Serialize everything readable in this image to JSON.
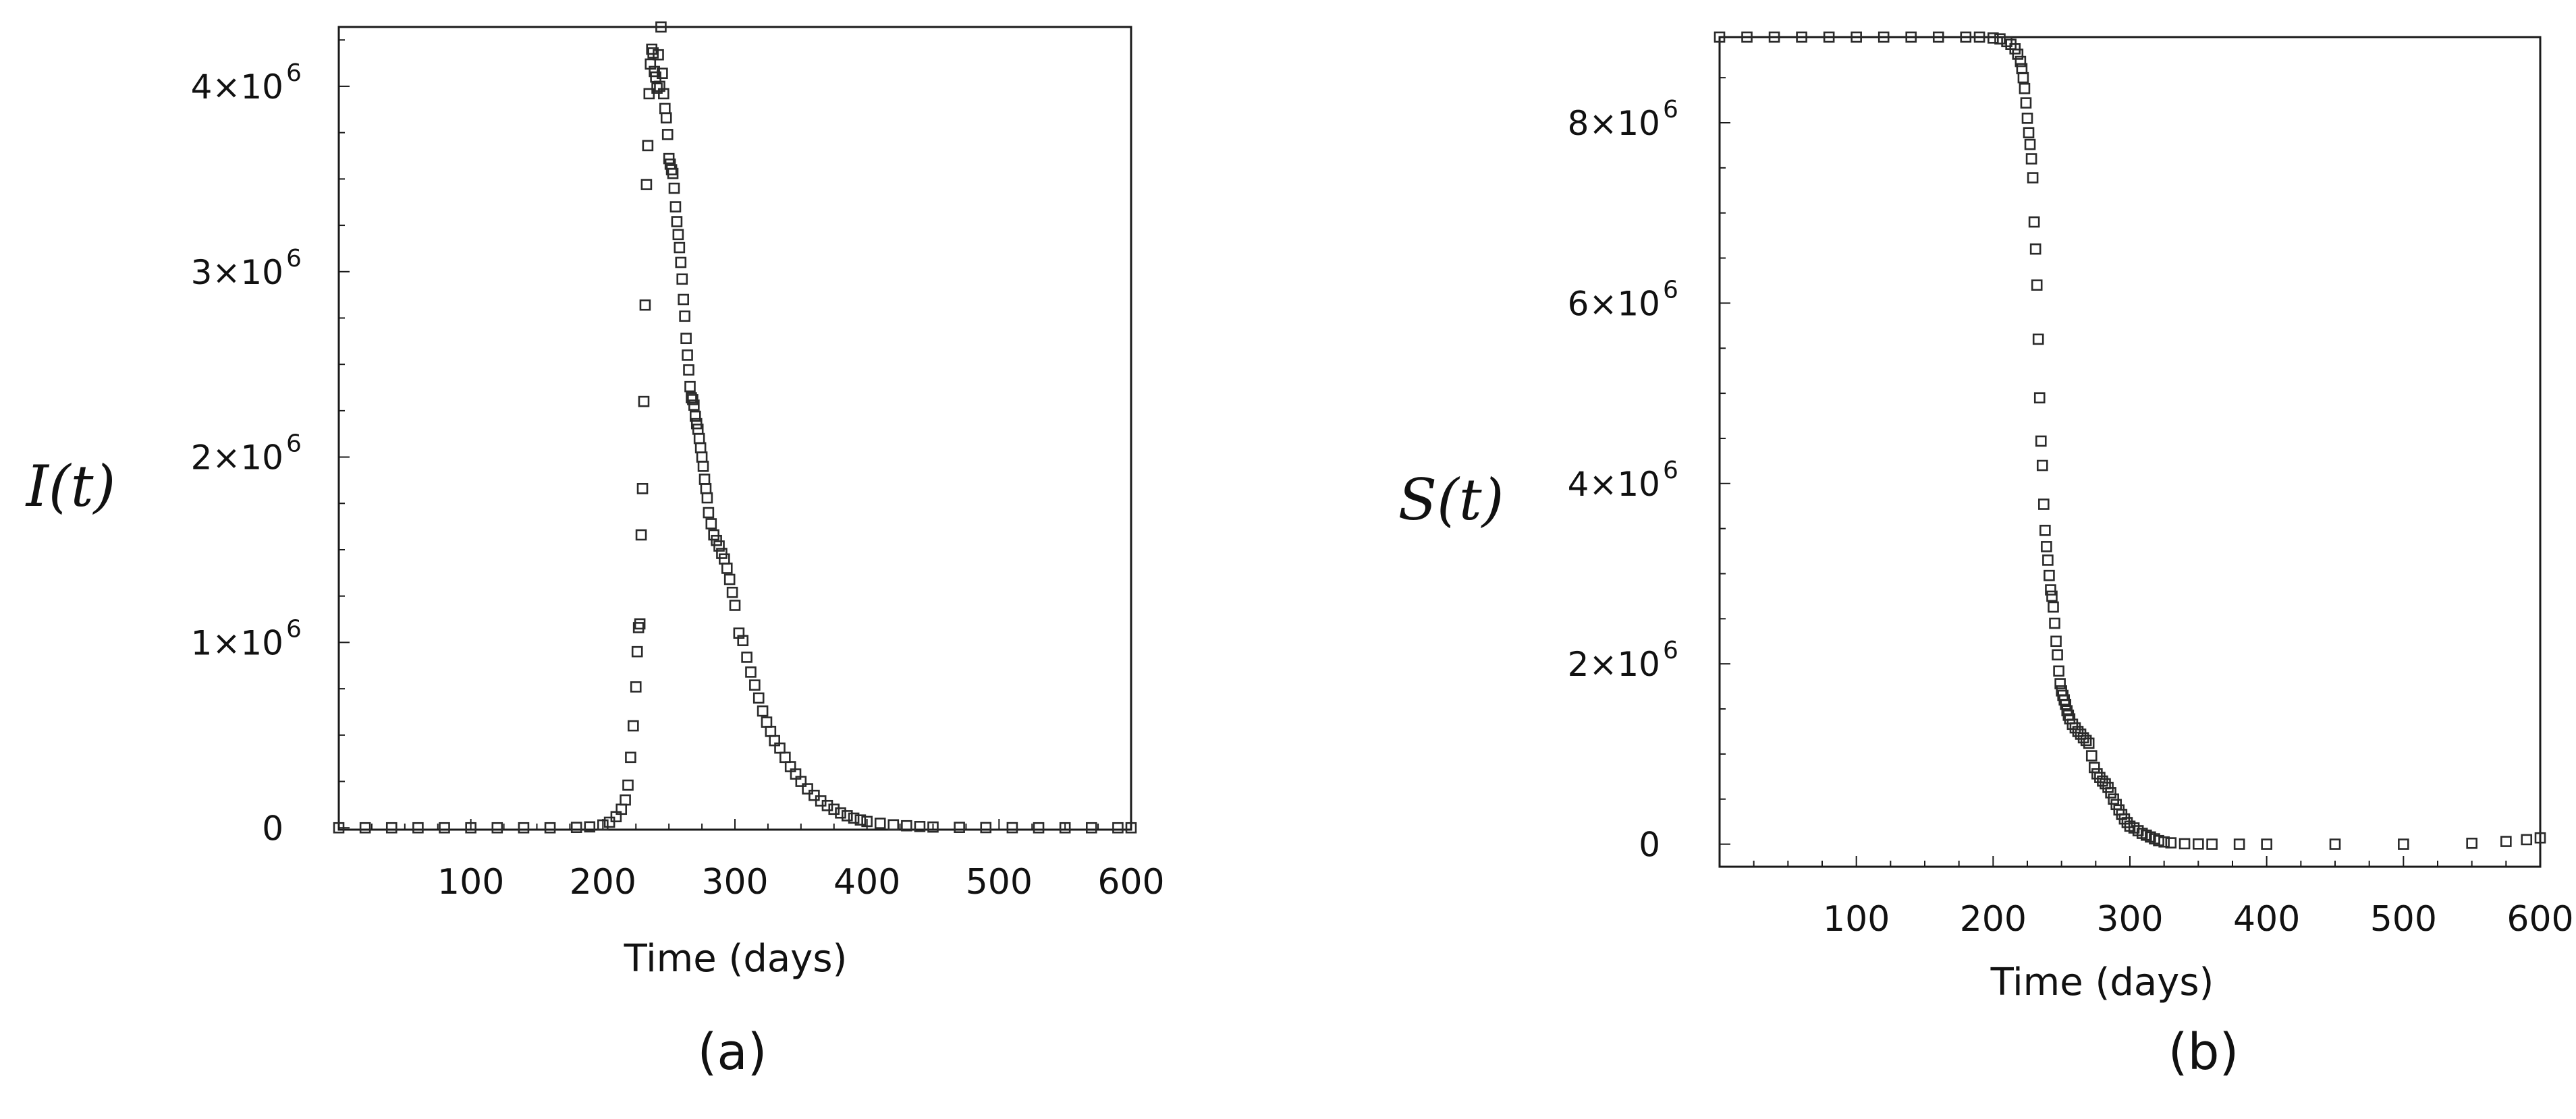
{
  "figure": {
    "panels": [
      {
        "label": "(a)"
      },
      {
        "label": "(b)"
      }
    ]
  },
  "chart_data": [
    {
      "type": "scatter",
      "panel": "(a)",
      "title": "",
      "xlabel": "Time (days)",
      "ylabel": "I(t)",
      "ylabel_parts": [
        "I",
        "(",
        "t",
        ")"
      ],
      "xlim": [
        0,
        600
      ],
      "ylim": [
        -10000,
        4320000
      ],
      "x_ticks": [
        100,
        200,
        300,
        400,
        500,
        600
      ],
      "x_tick_labels": [
        "100",
        "200",
        "300",
        "400",
        "500",
        "600"
      ],
      "y_ticks": [
        0,
        1000000,
        2000000,
        3000000,
        4000000
      ],
      "y_tick_labels": [
        "0",
        "1×10",
        "2×10",
        "3×10",
        "4×10"
      ],
      "y_tick_exponents": [
        "",
        "6",
        "6",
        "6",
        "6"
      ],
      "marker": "open-square",
      "marker_color": "#2a2a2a",
      "series": [
        {
          "name": "I(t)",
          "x": [
            0,
            20,
            40,
            60,
            80,
            100,
            120,
            140,
            160,
            180,
            190,
            200,
            205,
            210,
            214,
            217,
            219,
            221,
            223,
            225,
            226,
            227,
            228,
            229,
            230,
            231,
            232,
            233,
            234,
            235,
            236,
            237,
            238,
            239,
            240,
            241,
            242,
            243,
            244,
            245,
            246,
            247,
            248,
            249,
            250,
            251,
            252,
            253,
            254,
            255,
            256,
            257,
            258,
            259,
            260,
            261,
            262,
            263,
            264,
            265,
            266,
            267,
            268,
            269,
            270,
            271,
            272,
            273,
            274,
            275,
            276,
            277,
            278,
            279,
            280,
            282,
            284,
            286,
            288,
            290,
            292,
            294,
            296,
            298,
            300,
            303,
            306,
            309,
            312,
            315,
            318,
            321,
            324,
            327,
            330,
            334,
            338,
            342,
            346,
            350,
            355,
            360,
            365,
            370,
            375,
            380,
            385,
            390,
            395,
            400,
            410,
            420,
            430,
            440,
            450,
            470,
            490,
            510,
            530,
            550,
            570,
            590,
            600
          ],
          "y": [
            0,
            0,
            0,
            0,
            0,
            0,
            0,
            0,
            0,
            2000,
            5000,
            15000,
            30000,
            60000,
            100000,
            150000,
            230000,
            380000,
            550000,
            760000,
            950000,
            1080000,
            1100000,
            1580000,
            1830000,
            2300000,
            2820000,
            3470000,
            3680000,
            3960000,
            4120000,
            4200000,
            4180000,
            4080000,
            4050000,
            3990000,
            4170000,
            4000000,
            4320000,
            4070000,
            3960000,
            3880000,
            3830000,
            3740000,
            3610000,
            3580000,
            3550000,
            3530000,
            3450000,
            3350000,
            3270000,
            3200000,
            3130000,
            3050000,
            2960000,
            2850000,
            2760000,
            2640000,
            2550000,
            2470000,
            2380000,
            2320000,
            2310000,
            2280000,
            2220000,
            2180000,
            2150000,
            2100000,
            2050000,
            2000000,
            1950000,
            1880000,
            1830000,
            1780000,
            1700000,
            1640000,
            1580000,
            1550000,
            1520000,
            1480000,
            1450000,
            1400000,
            1340000,
            1270000,
            1200000,
            1050000,
            1010000,
            920000,
            840000,
            770000,
            700000,
            630000,
            570000,
            520000,
            470000,
            430000,
            380000,
            330000,
            290000,
            250000,
            210000,
            175000,
            145000,
            120000,
            100000,
            80000,
            65000,
            52000,
            42000,
            34000,
            24000,
            16000,
            11000,
            7000,
            4000,
            2000,
            1000,
            500,
            0,
            0,
            0,
            0,
            0
          ]
        }
      ]
    },
    {
      "type": "scatter",
      "panel": "(b)",
      "title": "",
      "xlabel": "Time (days)",
      "ylabel": "S(t)",
      "ylabel_parts": [
        "S",
        "(",
        "t",
        ")"
      ],
      "xlim": [
        0,
        600
      ],
      "ylim": [
        -250000,
        8950000
      ],
      "x_ticks": [
        100,
        200,
        300,
        400,
        500,
        600
      ],
      "x_tick_labels": [
        "100",
        "200",
        "300",
        "400",
        "500",
        "600"
      ],
      "y_ticks": [
        0,
        2000000,
        4000000,
        6000000,
        8000000
      ],
      "y_tick_labels": [
        "0",
        "2×10",
        "4×10",
        "6×10",
        "8×10"
      ],
      "y_tick_exponents": [
        "",
        "6",
        "6",
        "6",
        "6"
      ],
      "marker": "open-square",
      "marker_color": "#2a2a2a",
      "series": [
        {
          "name": "S(t)",
          "x": [
            0,
            20,
            40,
            60,
            80,
            100,
            120,
            140,
            160,
            180,
            190,
            200,
            205,
            210,
            213,
            216,
            218,
            220,
            221,
            222,
            223,
            224,
            225,
            226,
            227,
            228,
            229,
            230,
            231,
            232,
            233,
            234,
            235,
            236,
            237,
            238,
            239,
            240,
            241,
            242,
            243,
            244,
            245,
            246,
            247,
            248,
            249,
            250,
            251,
            252,
            253,
            254,
            255,
            256,
            258,
            260,
            262,
            264,
            266,
            268,
            270,
            272,
            274,
            276,
            278,
            280,
            282,
            284,
            286,
            288,
            290,
            292,
            294,
            296,
            298,
            300,
            303,
            306,
            309,
            312,
            315,
            318,
            321,
            325,
            330,
            340,
            350,
            360,
            380,
            400,
            450,
            500,
            550,
            575,
            590,
            600
          ],
          "y": [
            8950000,
            8950000,
            8950000,
            8950000,
            8950000,
            8950000,
            8950000,
            8950000,
            8950000,
            8950000,
            8950000,
            8940000,
            8930000,
            8900000,
            8870000,
            8820000,
            8760000,
            8680000,
            8600000,
            8500000,
            8380000,
            8220000,
            8050000,
            7890000,
            7760000,
            7600000,
            7390000,
            6900000,
            6600000,
            6200000,
            5600000,
            4950000,
            4470000,
            4200000,
            3770000,
            3480000,
            3300000,
            3150000,
            2980000,
            2820000,
            2750000,
            2630000,
            2450000,
            2250000,
            2100000,
            1920000,
            1780000,
            1700000,
            1650000,
            1600000,
            1550000,
            1480000,
            1430000,
            1390000,
            1330000,
            1290000,
            1250000,
            1220000,
            1180000,
            1150000,
            1120000,
            980000,
            850000,
            780000,
            740000,
            700000,
            670000,
            630000,
            570000,
            500000,
            440000,
            380000,
            330000,
            280000,
            240000,
            200000,
            180000,
            150000,
            120000,
            100000,
            80000,
            60000,
            40000,
            25000,
            15000,
            5000,
            2000,
            0,
            0,
            0,
            0,
            0,
            10000,
            30000,
            50000,
            70000
          ]
        }
      ]
    }
  ]
}
